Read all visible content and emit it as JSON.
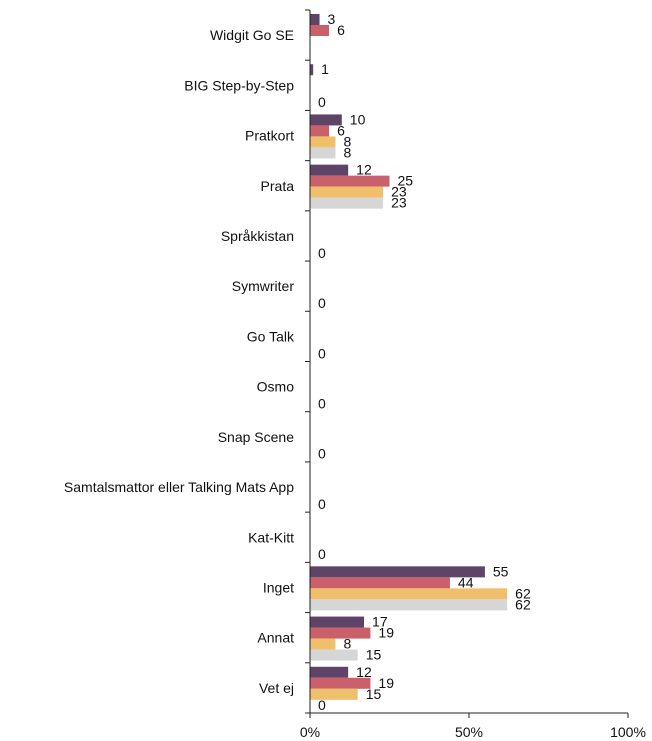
{
  "chart_data": {
    "type": "bar",
    "orientation": "horizontal",
    "categories": [
      "Widgit Go SE",
      "BIG Step-by-Step",
      "Pratkort",
      "Prata",
      "Språkkistan",
      "Symwriter",
      "Go Talk",
      "Osmo",
      "Snap Scene",
      "Samtalsmattor eller Talking Mats App",
      "Kat-Kitt",
      "Inget",
      "Annat",
      "Vet ej"
    ],
    "series": [
      {
        "color": "#5e4466",
        "values": [
          3,
          1,
          10,
          12,
          0,
          0,
          0,
          0,
          0,
          0,
          0,
          55,
          17,
          12
        ]
      },
      {
        "color": "#c9606a",
        "values": [
          6,
          0,
          6,
          25,
          0,
          0,
          0,
          0,
          0,
          0,
          0,
          44,
          19,
          19
        ]
      },
      {
        "color": "#f0bf6c",
        "values": [
          0,
          0,
          8,
          23,
          0,
          0,
          0,
          0,
          0,
          0,
          0,
          62,
          8,
          15
        ]
      },
      {
        "color": "#d6d6d6",
        "values": [
          0,
          0,
          8,
          23,
          0,
          0,
          0,
          0,
          0,
          0,
          0,
          62,
          15,
          0
        ]
      }
    ],
    "data_labels": [
      [
        "3",
        "6",
        "",
        ""
      ],
      [
        "1",
        "",
        "",
        "0"
      ],
      [
        "10",
        "6",
        "8",
        "8"
      ],
      [
        "12",
        "25",
        "23",
        "23"
      ],
      [
        "",
        "",
        "",
        "0"
      ],
      [
        "",
        "",
        "",
        "0"
      ],
      [
        "",
        "",
        "",
        "0"
      ],
      [
        "",
        "",
        "",
        "0"
      ],
      [
        "",
        "",
        "",
        "0"
      ],
      [
        "",
        "",
        "",
        "0"
      ],
      [
        "",
        "",
        "",
        "0"
      ],
      [
        "55",
        "44",
        "62",
        "62"
      ],
      [
        "17",
        "19",
        "8",
        "15"
      ],
      [
        "12",
        "19",
        "15",
        "0"
      ]
    ],
    "x_ticks": [
      0,
      50,
      100
    ],
    "x_tick_labels": [
      "0%",
      "50%",
      "100%"
    ],
    "xlim": [
      0,
      100
    ],
    "title": "",
    "xlabel": "",
    "ylabel": "",
    "grid": false,
    "legend": "none"
  }
}
